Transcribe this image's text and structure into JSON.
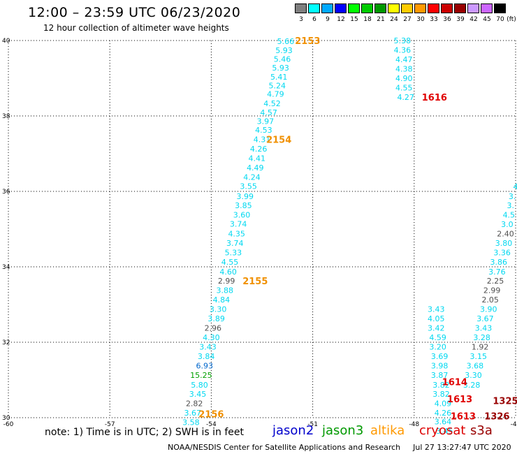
{
  "header": {
    "title": "12:00 – 23:59 UTC 06/23/2020",
    "subtitle": "12 hour collection of altimeter wave heights"
  },
  "legend": {
    "unit": "(ft)",
    "items": [
      {
        "label": "3",
        "color": "#7f7f7f"
      },
      {
        "label": "6",
        "color": "#00ffff"
      },
      {
        "label": "9",
        "color": "#00aaff"
      },
      {
        "label": "12",
        "color": "#0000ff"
      },
      {
        "label": "15",
        "color": "#00ff00"
      },
      {
        "label": "18",
        "color": "#00cc00"
      },
      {
        "label": "21",
        "color": "#009900"
      },
      {
        "label": "24",
        "color": "#ffff00"
      },
      {
        "label": "27",
        "color": "#ffcc00"
      },
      {
        "label": "30",
        "color": "#ff9900"
      },
      {
        "label": "33",
        "color": "#ff0000"
      },
      {
        "label": "36",
        "color": "#cc0000"
      },
      {
        "label": "39",
        "color": "#990000"
      },
      {
        "label": "42",
        "color": "#cc99ff"
      },
      {
        "label": "45",
        "color": "#cc66ff"
      },
      {
        "label": "70",
        "color": "#000000"
      }
    ]
  },
  "map": {
    "lon_range": [
      -60,
      -45
    ],
    "lat_range": [
      30,
      40
    ],
    "lon_ticks": [
      "-60",
      "-57",
      "-54",
      "-51",
      "-48",
      "-45"
    ],
    "lat_ticks": [
      "30",
      "32",
      "34",
      "36",
      "38",
      "40"
    ],
    "colors": {
      "cyan": "#00d8f0",
      "gray": "#505050",
      "green": "#00a000",
      "blue": "#0066cc",
      "orange": "#f09000",
      "red": "#e00000",
      "darkred": "#990000"
    },
    "points": [
      {
        "v": "5.66",
        "lon": -51.8,
        "lat": 39.98,
        "c": "cyan"
      },
      {
        "v": "5.93",
        "lon": -51.85,
        "lat": 39.74,
        "c": "cyan"
      },
      {
        "v": "5.46",
        "lon": -51.9,
        "lat": 39.51,
        "c": "cyan"
      },
      {
        "v": "5.93",
        "lon": -51.95,
        "lat": 39.28,
        "c": "cyan"
      },
      {
        "v": "5.41",
        "lon": -52.0,
        "lat": 39.04,
        "c": "cyan"
      },
      {
        "v": "5.24",
        "lon": -52.05,
        "lat": 38.81,
        "c": "cyan"
      },
      {
        "v": "4.79",
        "lon": -52.1,
        "lat": 38.58,
        "c": "cyan"
      },
      {
        "v": "4.52",
        "lon": -52.2,
        "lat": 38.33,
        "c": "cyan"
      },
      {
        "v": "4.57",
        "lon": -52.3,
        "lat": 38.09,
        "c": "cyan"
      },
      {
        "v": "3.97",
        "lon": -52.4,
        "lat": 37.86,
        "c": "cyan"
      },
      {
        "v": "4.53",
        "lon": -52.45,
        "lat": 37.63,
        "c": "cyan"
      },
      {
        "v": "4.31",
        "lon": -52.5,
        "lat": 37.38,
        "c": "cyan"
      },
      {
        "v": "4.26",
        "lon": -52.6,
        "lat": 37.13,
        "c": "cyan"
      },
      {
        "v": "4.41",
        "lon": -52.65,
        "lat": 36.88,
        "c": "cyan"
      },
      {
        "v": "4.49",
        "lon": -52.7,
        "lat": 36.63,
        "c": "cyan"
      },
      {
        "v": "4.24",
        "lon": -52.8,
        "lat": 36.38,
        "c": "cyan"
      },
      {
        "v": "3.55",
        "lon": -52.9,
        "lat": 36.14,
        "c": "cyan"
      },
      {
        "v": "3.99",
        "lon": -53.0,
        "lat": 35.87,
        "c": "cyan"
      },
      {
        "v": "3.85",
        "lon": -53.05,
        "lat": 35.63,
        "c": "cyan"
      },
      {
        "v": "3.60",
        "lon": -53.1,
        "lat": 35.38,
        "c": "cyan"
      },
      {
        "v": "3.74",
        "lon": -53.2,
        "lat": 35.14,
        "c": "cyan"
      },
      {
        "v": "4.35",
        "lon": -53.25,
        "lat": 34.88,
        "c": "cyan"
      },
      {
        "v": "3.74",
        "lon": -53.3,
        "lat": 34.63,
        "c": "cyan"
      },
      {
        "v": "5.33",
        "lon": -53.35,
        "lat": 34.38,
        "c": "cyan"
      },
      {
        "v": "4.55",
        "lon": -53.45,
        "lat": 34.13,
        "c": "cyan"
      },
      {
        "v": "4.60",
        "lon": -53.5,
        "lat": 33.87,
        "c": "cyan"
      },
      {
        "v": "2.99",
        "lon": -53.55,
        "lat": 33.63,
        "c": "gray"
      },
      {
        "v": "3.88",
        "lon": -53.6,
        "lat": 33.38,
        "c": "cyan"
      },
      {
        "v": "4.84",
        "lon": -53.7,
        "lat": 33.13,
        "c": "cyan"
      },
      {
        "v": "3.30",
        "lon": -53.8,
        "lat": 32.88,
        "c": "cyan"
      },
      {
        "v": "3.89",
        "lon": -53.85,
        "lat": 32.63,
        "c": "cyan"
      },
      {
        "v": "2.96",
        "lon": -53.95,
        "lat": 32.38,
        "c": "gray"
      },
      {
        "v": "4.30",
        "lon": -54.0,
        "lat": 32.13,
        "c": "cyan"
      },
      {
        "v": "3.43",
        "lon": -54.1,
        "lat": 31.88,
        "c": "cyan"
      },
      {
        "v": "3.84",
        "lon": -54.15,
        "lat": 31.63,
        "c": "cyan"
      },
      {
        "v": "6.93",
        "lon": -54.2,
        "lat": 31.38,
        "c": "blue"
      },
      {
        "v": "15.25",
        "lon": -54.3,
        "lat": 31.13,
        "c": "green"
      },
      {
        "v": "5.80",
        "lon": -54.35,
        "lat": 30.87,
        "c": "cyan"
      },
      {
        "v": "3.45",
        "lon": -54.4,
        "lat": 30.63,
        "c": "cyan"
      },
      {
        "v": "2.82",
        "lon": -54.5,
        "lat": 30.38,
        "c": "gray"
      },
      {
        "v": "3.67",
        "lon": -54.55,
        "lat": 30.13,
        "c": "cyan"
      },
      {
        "v": "3.58",
        "lon": -54.6,
        "lat": 29.88,
        "c": "cyan"
      },
      {
        "v": "5.38",
        "lon": -48.35,
        "lat": 40.0,
        "c": "cyan"
      },
      {
        "v": "4.36",
        "lon": -48.35,
        "lat": 39.75,
        "c": "cyan"
      },
      {
        "v": "4.47",
        "lon": -48.3,
        "lat": 39.5,
        "c": "cyan"
      },
      {
        "v": "4.38",
        "lon": -48.3,
        "lat": 39.25,
        "c": "cyan"
      },
      {
        "v": "4.90",
        "lon": -48.3,
        "lat": 39.0,
        "c": "cyan"
      },
      {
        "v": "4.55",
        "lon": -48.3,
        "lat": 38.75,
        "c": "cyan"
      },
      {
        "v": "4.27",
        "lon": -48.25,
        "lat": 38.5,
        "c": "cyan"
      },
      {
        "v": "3.43",
        "lon": -47.35,
        "lat": 32.88,
        "c": "cyan"
      },
      {
        "v": "4.05",
        "lon": -47.35,
        "lat": 32.63,
        "c": "cyan"
      },
      {
        "v": "3.42",
        "lon": -47.35,
        "lat": 32.38,
        "c": "cyan"
      },
      {
        "v": "4.59",
        "lon": -47.3,
        "lat": 32.13,
        "c": "cyan"
      },
      {
        "v": "3.20",
        "lon": -47.3,
        "lat": 31.88,
        "c": "cyan"
      },
      {
        "v": "3.69",
        "lon": -47.25,
        "lat": 31.63,
        "c": "cyan"
      },
      {
        "v": "3.98",
        "lon": -47.25,
        "lat": 31.38,
        "c": "cyan"
      },
      {
        "v": "3.87",
        "lon": -47.25,
        "lat": 31.13,
        "c": "cyan"
      },
      {
        "v": "3.82",
        "lon": -47.2,
        "lat": 30.87,
        "c": "cyan"
      },
      {
        "v": "3.82",
        "lon": -47.2,
        "lat": 30.63,
        "c": "cyan"
      },
      {
        "v": "4.09",
        "lon": -47.15,
        "lat": 30.38,
        "c": "cyan"
      },
      {
        "v": "4.26",
        "lon": -47.15,
        "lat": 30.13,
        "c": "cyan"
      },
      {
        "v": "3.64",
        "lon": -47.15,
        "lat": 29.9,
        "c": "cyan"
      },
      {
        "v": "3.45",
        "lon": -47.1,
        "lat": 29.65,
        "c": "cyan"
      },
      {
        "v": "4",
        "lon": -45.0,
        "lat": 36.13,
        "c": "cyan"
      },
      {
        "v": "3.",
        "lon": -45.1,
        "lat": 35.87,
        "c": "cyan"
      },
      {
        "v": "3.",
        "lon": -45.15,
        "lat": 35.63,
        "c": "cyan"
      },
      {
        "v": "4.5",
        "lon": -45.2,
        "lat": 35.38,
        "c": "cyan"
      },
      {
        "v": "3.0",
        "lon": -45.25,
        "lat": 35.13,
        "c": "cyan"
      },
      {
        "v": "2.40",
        "lon": -45.3,
        "lat": 34.88,
        "c": "gray"
      },
      {
        "v": "3.80",
        "lon": -45.35,
        "lat": 34.63,
        "c": "cyan"
      },
      {
        "v": "3.36",
        "lon": -45.4,
        "lat": 34.38,
        "c": "cyan"
      },
      {
        "v": "3.86",
        "lon": -45.5,
        "lat": 34.13,
        "c": "cyan"
      },
      {
        "v": "3.76",
        "lon": -45.55,
        "lat": 33.87,
        "c": "cyan"
      },
      {
        "v": "2.25",
        "lon": -45.6,
        "lat": 33.63,
        "c": "gray"
      },
      {
        "v": "2.99",
        "lon": -45.7,
        "lat": 33.38,
        "c": "gray"
      },
      {
        "v": "2.05",
        "lon": -45.75,
        "lat": 33.13,
        "c": "gray"
      },
      {
        "v": "3.90",
        "lon": -45.8,
        "lat": 32.88,
        "c": "cyan"
      },
      {
        "v": "3.67",
        "lon": -45.9,
        "lat": 32.63,
        "c": "cyan"
      },
      {
        "v": "3.43",
        "lon": -45.95,
        "lat": 32.38,
        "c": "cyan"
      },
      {
        "v": "3.28",
        "lon": -46.0,
        "lat": 32.13,
        "c": "cyan"
      },
      {
        "v": "1.92",
        "lon": -46.05,
        "lat": 31.88,
        "c": "gray"
      },
      {
        "v": "3.15",
        "lon": -46.1,
        "lat": 31.63,
        "c": "cyan"
      },
      {
        "v": "3.68",
        "lon": -46.2,
        "lat": 31.38,
        "c": "cyan"
      },
      {
        "v": "3.30",
        "lon": -46.25,
        "lat": 31.13,
        "c": "cyan"
      },
      {
        "v": "3.28",
        "lon": -46.3,
        "lat": 30.87,
        "c": "cyan"
      }
    ],
    "time_labels": [
      {
        "v": "2153",
        "lon": -51.15,
        "lat": 40.0,
        "c": "orange"
      },
      {
        "v": "2154",
        "lon": -52.0,
        "lat": 37.38,
        "c": "orange"
      },
      {
        "v": "2155",
        "lon": -52.7,
        "lat": 33.63,
        "c": "orange"
      },
      {
        "v": "2156",
        "lon": -54.0,
        "lat": 30.1,
        "c": "orange"
      },
      {
        "v": "1616",
        "lon": -47.4,
        "lat": 38.5,
        "c": "red"
      },
      {
        "v": "1614",
        "lon": -46.8,
        "lat": 30.95,
        "c": "red"
      },
      {
        "v": "1613",
        "lon": -46.65,
        "lat": 30.5,
        "c": "red"
      },
      {
        "v": "1613",
        "lon": -46.55,
        "lat": 30.05,
        "c": "red"
      },
      {
        "v": "1325",
        "lon": -45.3,
        "lat": 30.45,
        "c": "darkred"
      },
      {
        "v": "1326",
        "lon": -45.55,
        "lat": 30.05,
        "c": "darkred"
      }
    ]
  },
  "bottom": {
    "note": "note: 1) Time is in UTC; 2) SWH is in feet",
    "satellites": [
      {
        "name": "jason2",
        "color": "#0000cc"
      },
      {
        "name": "jason3",
        "color": "#009900"
      },
      {
        "name": "altika",
        "color": "#ff9900"
      },
      {
        "name": "cryosat",
        "color": "#dd0000"
      },
      {
        "name": "s3a",
        "color": "#990000"
      }
    ],
    "credit": "NOAA/NESDIS Center for Satellite Applications and Research",
    "timestamp": "Jul 27 13:27:47 UTC 2020"
  }
}
